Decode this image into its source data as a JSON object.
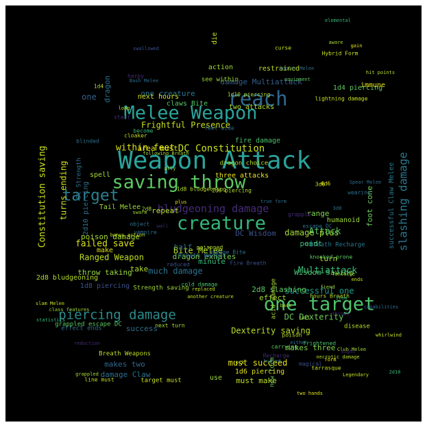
{
  "frame": {
    "background": "#000000",
    "page_background": "#ffffff"
  },
  "palette": {
    "purple": "#45155e",
    "blue": "#2f5f8f",
    "teal": "#21918c",
    "green": "#3cbc75",
    "lime": "#b5de2b",
    "yellow": "#f6e620"
  },
  "words": [
    {
      "text": "Weapon Attack",
      "weight": 100,
      "color": "#2aa39a"
    },
    {
      "text": "Melee Weapon",
      "weight": 88,
      "color": "#2aa39a"
    },
    {
      "text": "saving throw",
      "weight": 86,
      "color": "#5dc963"
    },
    {
      "text": "one target",
      "weight": 84,
      "color": "#4fc46a"
    },
    {
      "text": "reach",
      "weight": 82,
      "color": "#31688e"
    },
    {
      "text": "creature",
      "weight": 80,
      "color": "#35b779"
    },
    {
      "text": "target",
      "weight": 74,
      "color": "#2c7f8e"
    },
    {
      "text": "piercing damage",
      "weight": 66,
      "color": "#2c8c8c"
    },
    {
      "text": "bludgeoning damage",
      "weight": 48,
      "color": "#472c7a"
    },
    {
      "text": "slashing damage",
      "weight": 46,
      "color": "#2a788e"
    },
    {
      "text": "DC Constitution",
      "weight": 44,
      "color": "#c8e020"
    },
    {
      "text": "Frightful Presence",
      "weight": 40,
      "color": "#c8e020"
    },
    {
      "text": "Multiattack",
      "weight": 40,
      "color": "#3aba76"
    },
    {
      "text": "within feet",
      "weight": 40,
      "color": "#d8e219"
    },
    {
      "text": "Ranged Weapon",
      "weight": 38,
      "color": "#c2df23"
    },
    {
      "text": "Constitution saving",
      "weight": 38,
      "color": "#cde11d"
    },
    {
      "text": "failed save",
      "weight": 38,
      "color": "#d8e219"
    },
    {
      "text": "damage plus",
      "weight": 36,
      "color": "#a2da37"
    },
    {
      "text": "successful one",
      "weight": 36,
      "color": "#1f9e89"
    },
    {
      "text": "Bite Melee",
      "weight": 36,
      "color": "#b5de2b"
    },
    {
      "text": "Attack",
      "weight": 36,
      "color": "#58c765"
    },
    {
      "text": "much damage",
      "weight": 34,
      "color": "#2c728e"
    },
    {
      "text": "must succeed",
      "weight": 34,
      "color": "#e7e419"
    },
    {
      "text": "DC Dexterity",
      "weight": 32,
      "color": "#6ccd5a"
    },
    {
      "text": "Dexterity saving",
      "weight": 32,
      "color": "#b8de29"
    },
    {
      "text": "dragon exhales",
      "weight": 32,
      "color": "#7ad151"
    },
    {
      "text": "turns ending",
      "weight": 32,
      "color": "#d0e11c"
    },
    {
      "text": "throw taking",
      "weight": 32,
      "color": "#95d840"
    },
    {
      "text": "poison damage",
      "weight": 30,
      "color": "#a8db34"
    },
    {
      "text": "one creature",
      "weight": 30,
      "color": "#2a788e"
    },
    {
      "text": "area must",
      "weight": 30,
      "color": "#e2e418"
    },
    {
      "text": "makes two",
      "weight": 30,
      "color": "#31688e"
    },
    {
      "text": "must make",
      "weight": 30,
      "color": "#bddf26"
    },
    {
      "text": "makes three",
      "weight": 30,
      "color": "#84d44b"
    },
    {
      "text": "damage Multiattack",
      "weight": 28,
      "color": "#355f8d"
    },
    {
      "text": "damage Claw",
      "weight": 28,
      "color": "#2d708e"
    },
    {
      "text": "effect",
      "weight": 28,
      "color": "#a5db36"
    },
    {
      "text": "success",
      "weight": 28,
      "color": "#2e6e8e"
    },
    {
      "text": "2d8 slashing",
      "weight": 28,
      "color": "#5ec962"
    },
    {
      "text": "dragon",
      "weight": 28,
      "color": "#2c738e"
    },
    {
      "text": "Wisdom saving",
      "weight": 28,
      "color": "#4ac16d"
    },
    {
      "text": "restrained",
      "weight": 26,
      "color": "#c0df25"
    },
    {
      "text": "claws Bite",
      "weight": 26,
      "color": "#56c667"
    },
    {
      "text": "DC Wisdom",
      "weight": 26,
      "color": "#3b528b"
    },
    {
      "text": "three attacks",
      "weight": 26,
      "color": "#f1e51d"
    },
    {
      "text": "repeat",
      "weight": 26,
      "color": "#b5de2b"
    },
    {
      "text": "half",
      "weight": 26,
      "color": "#2e6d8e"
    },
    {
      "text": "range",
      "weight": 26,
      "color": "#81d34d"
    },
    {
      "text": "one",
      "weight": 26,
      "color": "#33638d"
    },
    {
      "text": "foot cone",
      "weight": 26,
      "color": "#6ccd5a"
    },
    {
      "text": "end",
      "weight": 26,
      "color": "#5ec962"
    },
    {
      "text": "turn",
      "weight": 26,
      "color": "#a8db34"
    },
    {
      "text": "take",
      "weight": 26,
      "color": "#b2dd2d"
    },
    {
      "text": "minute",
      "weight": 24,
      "color": "#35b779"
    },
    {
      "text": "point",
      "weight": 24,
      "color": "#35b779"
    },
    {
      "text": "2d8 bludgeoning",
      "weight": 24,
      "color": "#b5de2b"
    },
    {
      "text": "1d8 piercing",
      "weight": 24,
      "color": "#3b528b"
    },
    {
      "text": "2d10 piercing",
      "weight": 24,
      "color": "#2c728e"
    },
    {
      "text": "1d6 piercing",
      "weight": 22,
      "color": "#e2e418"
    },
    {
      "text": "1d4 piercing",
      "weight": 22,
      "color": "#5ec962"
    },
    {
      "text": "successful Claw Melee",
      "weight": 22,
      "color": "#2a788e"
    },
    {
      "text": "two attacks",
      "weight": 22,
      "color": "#b5de2b"
    },
    {
      "text": "fire damage",
      "weight": 22,
      "color": "#4ac16d"
    },
    {
      "text": "action",
      "weight": 22,
      "color": "#a2da37"
    },
    {
      "text": "Breath Recharge",
      "weight": 22,
      "color": "#2a788e"
    },
    {
      "text": "immune",
      "weight": 22,
      "color": "#e2e418"
    },
    {
      "text": "humanoid",
      "weight": 22,
      "color": "#9fda3a"
    },
    {
      "text": "dragon choice",
      "weight": 20,
      "color": "#b5de2b"
    },
    {
      "text": "Tail Melee",
      "weight": 20,
      "color": "#9fda3a"
    },
    {
      "text": "DC Strength",
      "weight": 20,
      "color": "#2c728e"
    },
    {
      "text": "effect ends",
      "weight": 20,
      "color": "#2e6e8e"
    },
    {
      "text": "Breath Weapons",
      "weight": 20,
      "color": "#c0df25"
    },
    {
      "text": "grappled escape DC",
      "weight": 18,
      "color": "#5ec962"
    },
    {
      "text": "target must",
      "weight": 20,
      "color": "#c8e020"
    },
    {
      "text": "new form",
      "weight": 18,
      "color": "#6ccd5a"
    },
    {
      "text": "use",
      "weight": 20,
      "color": "#9fda3a"
    },
    {
      "text": "spell",
      "weight": 20,
      "color": "#a8db34"
    },
    {
      "text": "make",
      "weight": 20,
      "color": "#e2e418"
    },
    {
      "text": "Hybrid Form",
      "weight": 16,
      "color": "#c8e020"
    },
    {
      "text": "next hours",
      "weight": 18,
      "color": "#d0e11c"
    },
    {
      "text": "see within",
      "weight": 16,
      "color": "#a2da37"
    },
    {
      "text": "die",
      "weight": 18,
      "color": "#c8e020"
    },
    {
      "text": "knocked prone",
      "weight": 16,
      "color": "#5ec962"
    },
    {
      "text": "poisoned",
      "weight": 16,
      "color": "#b5de2b"
    },
    {
      "text": "acid damage",
      "weight": 16,
      "color": "#a8db34"
    },
    {
      "text": "cold damage",
      "weight": 14,
      "color": "#4ac16d"
    },
    {
      "text": "disease",
      "weight": 16,
      "color": "#b5de2b"
    },
    {
      "text": "Fire Breath",
      "weight": 14,
      "color": "#3b528b"
    },
    {
      "text": "Strength saving",
      "weight": 16,
      "color": "#a2da37"
    },
    {
      "text": "damage Bite",
      "weight": 18,
      "color": "#2c728e"
    },
    {
      "text": "Breath Weapon",
      "weight": 16,
      "color": "#2e6e8e"
    },
    {
      "text": "lightning damage",
      "weight": 14,
      "color": "#c8e020"
    },
    {
      "text": "1d10 piercing",
      "weight": 14,
      "color": "#a8db34"
    },
    {
      "text": "2d6 piercing",
      "weight": 14,
      "color": "#b5de2b"
    },
    {
      "text": "1d8 bludgeoning",
      "weight": 14,
      "color": "#b5de2b"
    },
    {
      "text": "feet wide",
      "weight": 14,
      "color": "#2e6e8e"
    },
    {
      "text": "become",
      "weight": 14,
      "color": "#35b779"
    },
    {
      "text": "reduced",
      "weight": 14,
      "color": "#3b528b"
    },
    {
      "text": "line must",
      "weight": 14,
      "color": "#c0df25"
    },
    {
      "text": "magical",
      "weight": 12,
      "color": "#3b528b"
    },
    {
      "text": "vampire",
      "weight": 12,
      "color": "#2e6e8e"
    },
    {
      "text": "tarrasque",
      "weight": 12,
      "color": "#c0df25"
    },
    {
      "text": "curse",
      "weight": 12,
      "color": "#c8e020"
    },
    {
      "text": "start",
      "weight": 12,
      "color": "#472c7a"
    },
    {
      "text": "harpy",
      "weight": 12,
      "color": "#472c7a"
    },
    {
      "text": "wearing",
      "weight": 12,
      "color": "#2c728e"
    },
    {
      "text": "escape DC",
      "weight": 12,
      "color": "#2c728e"
    },
    {
      "text": "hours Breath",
      "weight": 12,
      "color": "#b5de2b"
    },
    {
      "text": "next turn",
      "weight": 12,
      "color": "#a8db34"
    },
    {
      "text": "carrying",
      "weight": 12,
      "color": "#5ec962"
    },
    {
      "text": "frightened",
      "weight": 12,
      "color": "#4ac16d"
    },
    {
      "text": "Recharge",
      "weight": 12,
      "color": "#472c7a"
    },
    {
      "text": "poison",
      "weight": 10,
      "color": "#b5de2b"
    },
    {
      "text": "blinded",
      "weight": 12,
      "color": "#2c728e"
    },
    {
      "text": "Hooves Melee",
      "weight": 10,
      "color": "#2e6e8e"
    },
    {
      "text": "cloaker",
      "weight": 10,
      "color": "#c0df25"
    },
    {
      "text": "gain",
      "weight": 10,
      "color": "#e2e418"
    },
    {
      "text": "elemental",
      "weight": 10,
      "color": "#35b779"
    },
    {
      "text": "aware",
      "weight": 10,
      "color": "#a8db34"
    },
    {
      "text": "fiend",
      "weight": 10,
      "color": "#a2da37"
    },
    {
      "text": "slam Melee",
      "weight": 10,
      "color": "#c8e020"
    },
    {
      "text": "two hands",
      "weight": 10,
      "color": "#e2e418"
    },
    {
      "text": "true form",
      "weight": 10,
      "color": "#2e6e8e"
    },
    {
      "text": "Tentacle",
      "weight": 10,
      "color": "#b5de2b"
    },
    {
      "text": "whirlwind",
      "weight": 10,
      "color": "#c8e020"
    },
    {
      "text": "statistics",
      "weight": 10,
      "color": "#35b779"
    },
    {
      "text": "grappled",
      "weight": 12,
      "color": "#a8db34"
    },
    {
      "text": "reduction",
      "weight": 10,
      "color": "#472c7a"
    },
    {
      "text": "class features",
      "weight": 10,
      "color": "#a2da37"
    },
    {
      "text": "replaced",
      "weight": 10,
      "color": "#c0df25"
    },
    {
      "text": "item",
      "weight": 10,
      "color": "#35b779"
    },
    {
      "text": "hit points",
      "weight": 10,
      "color": "#b5de2b"
    },
    {
      "text": "thrown",
      "weight": 10,
      "color": "#472c7a"
    },
    {
      "text": "either",
      "weight": 10,
      "color": "#2c728e"
    },
    {
      "text": "swallowed",
      "weight": 10,
      "color": "#3b528b"
    },
    {
      "text": "capabilities",
      "weight": 10,
      "color": "#2e6e8e"
    },
    {
      "text": "ends",
      "weight": 10,
      "color": "#c8e020"
    },
    {
      "text": "back",
      "weight": 12,
      "color": "#b5de2b"
    },
    {
      "text": "object",
      "weight": 10,
      "color": "#2c728e"
    },
    {
      "text": "bonus action",
      "weight": 10,
      "color": "#c0df25"
    },
    {
      "text": "plus",
      "weight": 10,
      "color": "#e2e418"
    },
    {
      "text": "tail",
      "weight": 12,
      "color": "#a8db34"
    },
    {
      "text": "grapple",
      "weight": 10,
      "color": "#472c7a"
    },
    {
      "text": "swarm",
      "weight": 10,
      "color": "#a2da37"
    },
    {
      "text": "necrotic damage",
      "weight": 10,
      "color": "#b5de2b"
    },
    {
      "text": "long",
      "weight": 10,
      "color": "#c8e020"
    },
    {
      "text": "equipment",
      "weight": 10,
      "color": "#5ec962"
    },
    {
      "text": "form",
      "weight": 10,
      "color": "#e2e418"
    },
    {
      "text": "Club Melee",
      "weight": 10,
      "color": "#a8db34"
    },
    {
      "text": "Bash Melee",
      "weight": 10,
      "color": "#2e6e8e"
    },
    {
      "text": "hurled",
      "weight": 10,
      "color": "#2c728e"
    },
    {
      "text": "Legendary",
      "weight": 10,
      "color": "#c0df25"
    },
    {
      "text": "2d10",
      "weight": 12,
      "color": "#35b779"
    },
    {
      "text": "1d4",
      "weight": 12,
      "color": "#b5de2b"
    },
    {
      "text": "3d6",
      "weight": 12,
      "color": "#c8e020"
    },
    {
      "text": "2d8",
      "weight": 12,
      "color": "#a8db34"
    },
    {
      "text": "4d6",
      "weight": 10,
      "color": "#e2e418"
    },
    {
      "text": "3d8",
      "weight": 10,
      "color": "#2c728e"
    },
    {
      "text": "wall",
      "weight": 10,
      "color": "#472c7a"
    },
    {
      "text": "rock",
      "weight": 10,
      "color": "#c0df25"
    },
    {
      "text": "ally",
      "weight": 10,
      "color": "#a8db34"
    },
    {
      "text": "sight",
      "weight": 10,
      "color": "#472c7a"
    },
    {
      "text": "Spear Melee",
      "weight": 10,
      "color": "#2e6e8e"
    },
    {
      "text": "another creature",
      "weight": 10,
      "color": "#c8e020"
    },
    {
      "text": "following Breath",
      "weight": 10,
      "color": "#a2da37"
    }
  ]
}
